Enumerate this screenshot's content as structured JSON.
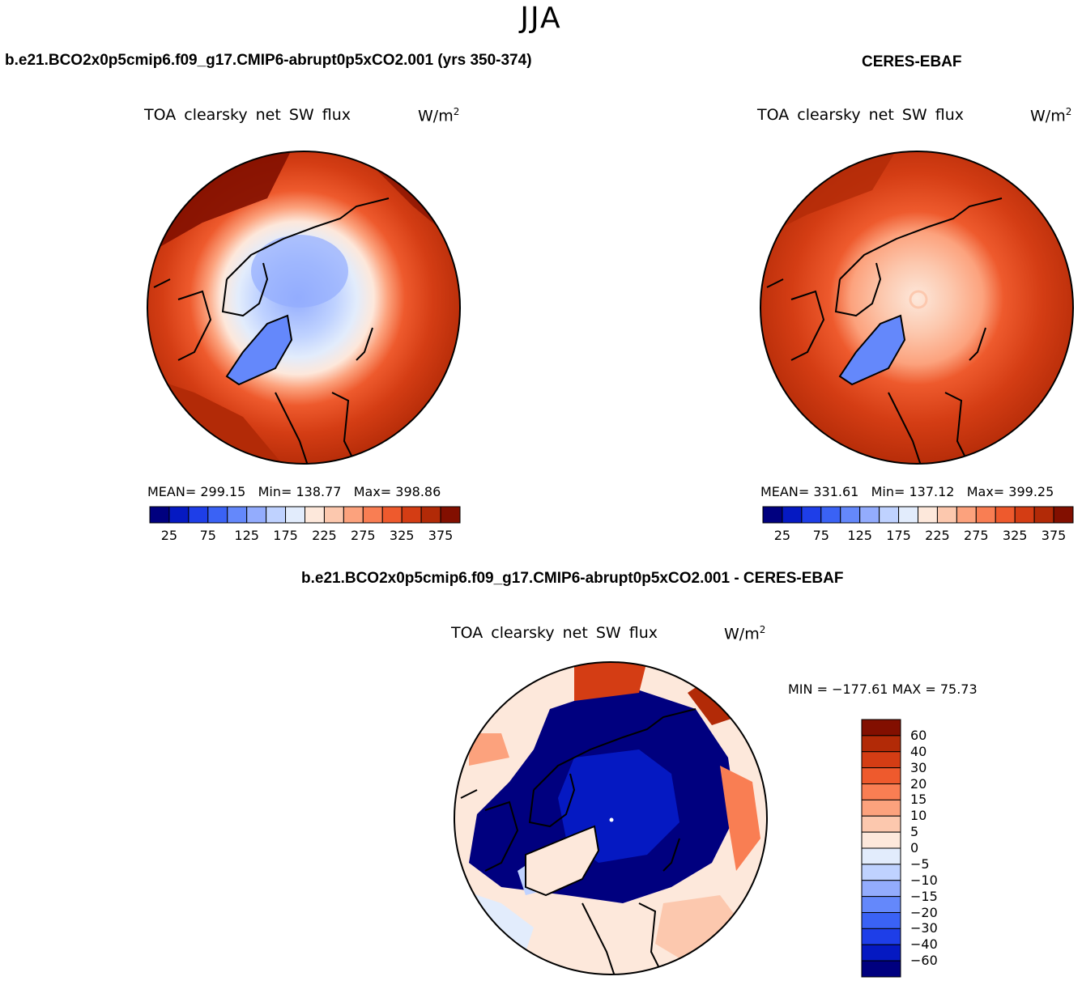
{
  "season": "JJA",
  "panels": [
    {
      "case_title": "b.e21.BCO2x0p5cmip6.f09_g17.CMIP6-abrupt0p5xCO2.001 (yrs 350-374)",
      "field_title": "TOA clearsky net SW flux",
      "units": "W/m",
      "units_sup": "2",
      "stats": {
        "mean_label": "MEAN=",
        "mean": "299.15",
        "min_label": "Min=",
        "min": "138.77",
        "max_label": "Max=",
        "max": "398.86"
      }
    },
    {
      "case_title": "CERES-EBAF",
      "field_title": "TOA clearsky net SW flux",
      "units": "W/m",
      "units_sup": "2",
      "stats": {
        "mean_label": "MEAN=",
        "mean": "331.61",
        "min_label": "Min=",
        "min": "137.12",
        "max_label": "Max=",
        "max": "399.25"
      }
    }
  ],
  "horizontal_colorbar": {
    "colors": [
      "#00007f",
      "#0519c2",
      "#1e3ee8",
      "#3a62f5",
      "#6488fb",
      "#93acfd",
      "#bfd2ff",
      "#e2ecfc",
      "#fde8db",
      "#fcc8ae",
      "#fca27d",
      "#f97e53",
      "#ee5a2d",
      "#d43d14",
      "#b22a07",
      "#820f00"
    ],
    "tick_labels": [
      "25",
      "75",
      "125",
      "175",
      "225",
      "275",
      "325",
      "375"
    ]
  },
  "difference_panel": {
    "case_title": "b.e21.BCO2x0p5cmip6.f09_g17.CMIP6-abrupt0p5xCO2.001 - CERES-EBAF",
    "field_title": "TOA clearsky net SW flux",
    "units": "W/m",
    "units_sup": "2",
    "minmax": "MIN = −177.61 MAX =  75.73",
    "colorbar": {
      "colors": [
        "#820f00",
        "#b22a07",
        "#d43d14",
        "#ee5a2d",
        "#f97e53",
        "#fca27d",
        "#fcc8ae",
        "#fde8db",
        "#e2ecfc",
        "#bfd2ff",
        "#93acfd",
        "#6488fb",
        "#3a62f5",
        "#1e3ee8",
        "#0519c2",
        "#00007f"
      ],
      "tick_labels": [
        "60",
        "40",
        "30",
        "20",
        "15",
        "10",
        "5",
        "0",
        "−5",
        "−10",
        "−15",
        "−20",
        "−30",
        "−40",
        "−60"
      ]
    }
  },
  "map_colors": {
    "deep_red": "#820f00",
    "red": "#b22a07",
    "red_orange": "#d43d14",
    "orange": "#ee5a2d",
    "salmon": "#fca27d",
    "peach": "#fcc8ae",
    "cream": "#fde8db",
    "pale_blue": "#e2ecfc",
    "light_blue": "#bfd2ff",
    "blue": "#93acfd",
    "mid_blue": "#6488fb",
    "navy": "#00007f",
    "coast": "#000000"
  }
}
